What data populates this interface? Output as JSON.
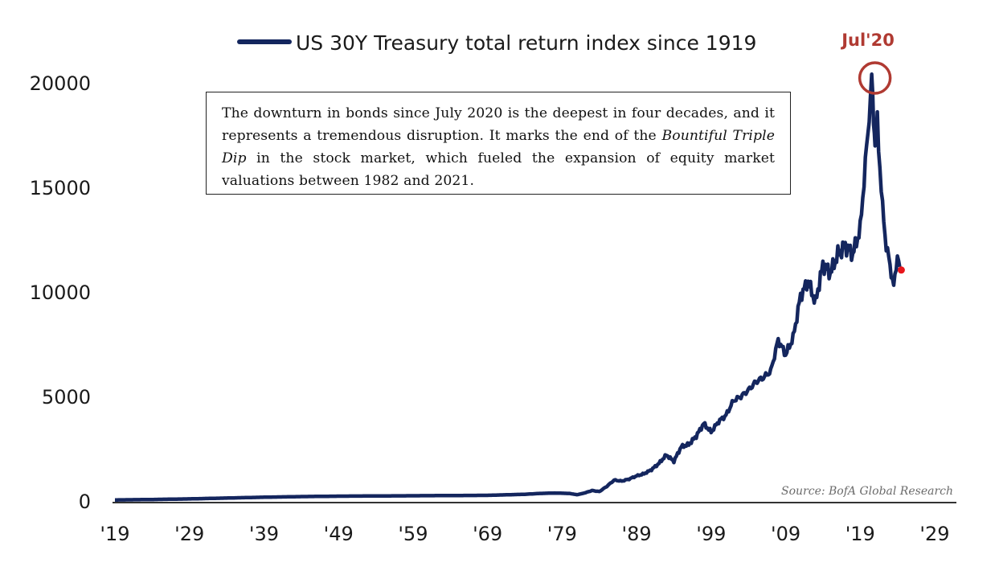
{
  "legend": {
    "label": "US 30Y Treasury total return index since 1919",
    "color": "#14265e"
  },
  "peak": {
    "label": "Jul'20",
    "color": "#b03a32"
  },
  "annotation": {
    "part1": "The downturn in bonds since July 2020 is the deepest in four decades, and it represents a tremendous disruption. It marks the end of the ",
    "emphasis": "Bountiful Triple Dip",
    "part2": " in the stock market, which fueled the expansion of equity market valuations between 1982 and 2021."
  },
  "source": "Source: BofA Global Research",
  "chart_data": {
    "type": "line",
    "title": "",
    "xlabel": "",
    "ylabel": "",
    "xlim": [
      1919,
      2029
    ],
    "ylim": [
      0,
      20000
    ],
    "x_ticks": [
      "'19",
      "'29",
      "'39",
      "'49",
      "'59",
      "'69",
      "'79",
      "'89",
      "'99",
      "'09",
      "'19",
      "'29"
    ],
    "y_ticks": [
      "0",
      "5000",
      "10000",
      "15000",
      "20000"
    ],
    "legend_position": "top-left",
    "grid": false,
    "series": [
      {
        "name": "US 30Y Treasury total return index since 1919",
        "color": "#14265e",
        "points": [
          [
            1919,
            50
          ],
          [
            1924,
            70
          ],
          [
            1929,
            100
          ],
          [
            1934,
            140
          ],
          [
            1939,
            180
          ],
          [
            1944,
            210
          ],
          [
            1949,
            230
          ],
          [
            1954,
            240
          ],
          [
            1959,
            250
          ],
          [
            1964,
            260
          ],
          [
            1969,
            270
          ],
          [
            1974,
            320
          ],
          [
            1976,
            360
          ],
          [
            1978,
            380
          ],
          [
            1980,
            360
          ],
          [
            1981,
            300
          ],
          [
            1982,
            380
          ],
          [
            1983,
            500
          ],
          [
            1984,
            450
          ],
          [
            1985,
            700
          ],
          [
            1986,
            1000
          ],
          [
            1987,
            950
          ],
          [
            1988,
            1050
          ],
          [
            1989,
            1200
          ],
          [
            1990,
            1300
          ],
          [
            1991,
            1500
          ],
          [
            1992,
            1800
          ],
          [
            1993,
            2200
          ],
          [
            1994,
            1900
          ],
          [
            1995,
            2600
          ],
          [
            1996,
            2700
          ],
          [
            1997,
            3100
          ],
          [
            1998,
            3700
          ],
          [
            1999,
            3300
          ],
          [
            2000,
            3800
          ],
          [
            2001,
            4100
          ],
          [
            2002,
            4800
          ],
          [
            2003,
            5000
          ],
          [
            2004,
            5300
          ],
          [
            2005,
            5700
          ],
          [
            2006,
            5900
          ],
          [
            2007,
            6200
          ],
          [
            2008,
            7700
          ],
          [
            2009,
            7000
          ],
          [
            2010,
            7800
          ],
          [
            2011,
            9800
          ],
          [
            2012,
            10500
          ],
          [
            2013,
            9500
          ],
          [
            2014,
            11300
          ],
          [
            2015,
            10900
          ],
          [
            2016,
            11800
          ],
          [
            2017,
            12200
          ],
          [
            2018,
            11800
          ],
          [
            2019,
            13000
          ],
          [
            2020.55,
            20000
          ],
          [
            2020.8,
            18500
          ],
          [
            2021,
            17000
          ],
          [
            2021.3,
            18000
          ],
          [
            2022,
            14000
          ],
          [
            2022.5,
            12200
          ],
          [
            2023,
            11300
          ],
          [
            2023.5,
            10200
          ],
          [
            2024,
            11800
          ],
          [
            2024.3,
            11200
          ]
        ]
      }
    ],
    "annotations": [
      {
        "label": "Jul'20",
        "x": 2020.55,
        "y": 20000
      }
    ],
    "last_point": {
      "x": 2024.3,
      "y": 11200,
      "color": "#e8161b"
    }
  }
}
